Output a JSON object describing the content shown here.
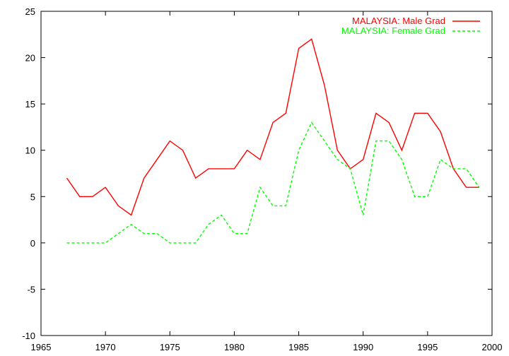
{
  "chart_data": {
    "type": "line",
    "title": "",
    "xlabel": "",
    "ylabel": "",
    "xlim": [
      1965,
      2000
    ],
    "ylim": [
      -10,
      25
    ],
    "xticks": [
      1965,
      1970,
      1975,
      1980,
      1985,
      1990,
      1995,
      2000
    ],
    "yticks": [
      -10,
      -5,
      0,
      5,
      10,
      15,
      20,
      25
    ],
    "grid": false,
    "legend": "top-right",
    "x": [
      1967,
      1968,
      1969,
      1970,
      1971,
      1972,
      1973,
      1974,
      1975,
      1976,
      1977,
      1978,
      1979,
      1980,
      1981,
      1982,
      1983,
      1984,
      1985,
      1986,
      1987,
      1988,
      1989,
      1990,
      1991,
      1992,
      1993,
      1994,
      1995,
      1996,
      1997,
      1998,
      1999
    ],
    "series": [
      {
        "name": "MALAYSIA: Male Grad",
        "color": "#ff0000",
        "dash": "solid",
        "values": [
          7,
          5,
          5,
          6,
          4,
          3,
          7,
          9,
          11,
          10,
          7,
          8,
          8,
          8,
          10,
          9,
          13,
          14,
          21,
          22,
          17,
          10,
          8,
          9,
          14,
          13,
          10,
          14,
          14,
          12,
          8,
          6,
          6
        ]
      },
      {
        "name": "MALAYSIA: Female Grad",
        "color": "#00ff00",
        "dash": "dashed",
        "values": [
          0,
          0,
          0,
          0,
          1,
          2,
          1,
          1,
          0,
          0,
          0,
          2,
          3,
          1,
          1,
          6,
          4,
          4,
          10,
          13,
          11,
          9,
          8,
          3,
          11,
          11,
          9,
          5,
          5,
          9,
          8,
          8,
          6
        ]
      }
    ]
  }
}
